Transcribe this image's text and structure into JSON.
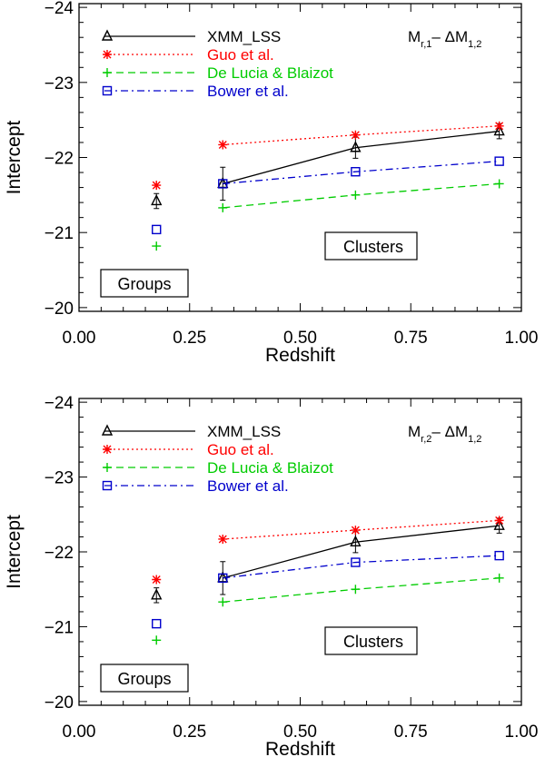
{
  "chart_data": [
    {
      "type": "scatter",
      "panel_label": {
        "main": "M",
        "sub1": "r,1",
        "mid": "– ΔM",
        "sub2": "1,2"
      },
      "xlabel": "Redshift",
      "ylabel": "Intercept",
      "xlim": [
        0.0,
        1.0
      ],
      "ylim": [
        -19.95,
        -24.05
      ],
      "x_ticks": [
        "0.00",
        "0.25",
        "0.50",
        "0.75",
        "1.00"
      ],
      "y_ticks": [
        "−24",
        "−23",
        "−22",
        "−21",
        "−20"
      ],
      "boxes": {
        "groups": "Groups",
        "clusters": "Clusters"
      },
      "series": [
        {
          "name": "XMM_LSS",
          "color": "#000000",
          "marker": "triangle",
          "line": "solid",
          "x": [
            0.175,
            0.325,
            0.625,
            0.95
          ],
          "y": [
            -21.42,
            -21.65,
            -22.13,
            -22.35
          ],
          "err": [
            0.1,
            0.22,
            0.14,
            0.1
          ],
          "connect_from": 1
        },
        {
          "name": "Guo et al.",
          "color": "#ff0000",
          "marker": "asterisk",
          "line": "dotted",
          "x": [
            0.175,
            0.325,
            0.625,
            0.95
          ],
          "y": [
            -21.63,
            -22.17,
            -22.3,
            -22.42
          ],
          "connect_from": 1
        },
        {
          "name": "De Lucia & Blaizot",
          "color": "#00cc00",
          "marker": "plus",
          "line": "dashed",
          "x": [
            0.175,
            0.325,
            0.625,
            0.95
          ],
          "y": [
            -20.82,
            -21.33,
            -21.5,
            -21.65
          ],
          "connect_from": 1
        },
        {
          "name": "Bower et al.",
          "color": "#0000cc",
          "marker": "square",
          "line": "dashdot",
          "x": [
            0.175,
            0.325,
            0.625,
            0.95
          ],
          "y": [
            -21.04,
            -21.65,
            -21.81,
            -21.95
          ],
          "connect_from": 1
        }
      ]
    },
    {
      "type": "scatter",
      "panel_label": {
        "main": "M",
        "sub1": "r,2",
        "mid": "– ΔM",
        "sub2": "1,2"
      },
      "xlabel": "Redshift",
      "ylabel": "Intercept",
      "xlim": [
        0.0,
        1.0
      ],
      "ylim": [
        -19.95,
        -24.05
      ],
      "x_ticks": [
        "0.00",
        "0.25",
        "0.50",
        "0.75",
        "1.00"
      ],
      "y_ticks": [
        "−24",
        "−23",
        "−22",
        "−21",
        "−20"
      ],
      "boxes": {
        "groups": "Groups",
        "clusters": "Clusters"
      },
      "series": [
        {
          "name": "XMM_LSS",
          "color": "#000000",
          "marker": "triangle",
          "line": "solid",
          "x": [
            0.175,
            0.325,
            0.625,
            0.95
          ],
          "y": [
            -21.42,
            -21.65,
            -22.13,
            -22.35
          ],
          "err": [
            0.1,
            0.22,
            0.14,
            0.1
          ],
          "connect_from": 1
        },
        {
          "name": "Guo et al.",
          "color": "#ff0000",
          "marker": "asterisk",
          "line": "dotted",
          "x": [
            0.175,
            0.325,
            0.625,
            0.95
          ],
          "y": [
            -21.63,
            -22.17,
            -22.29,
            -22.42
          ],
          "connect_from": 1
        },
        {
          "name": "De Lucia & Blaizot",
          "color": "#00cc00",
          "marker": "plus",
          "line": "dashed",
          "x": [
            0.175,
            0.325,
            0.625,
            0.95
          ],
          "y": [
            -20.82,
            -21.33,
            -21.5,
            -21.65
          ],
          "connect_from": 1
        },
        {
          "name": "Bower et al.",
          "color": "#0000cc",
          "marker": "square",
          "line": "dashdot",
          "x": [
            0.175,
            0.325,
            0.625,
            0.95
          ],
          "y": [
            -21.04,
            -21.65,
            -21.86,
            -21.95
          ],
          "connect_from": 1
        }
      ]
    }
  ]
}
